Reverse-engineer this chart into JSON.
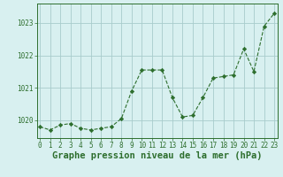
{
  "x": [
    0,
    1,
    2,
    3,
    4,
    5,
    6,
    7,
    8,
    9,
    10,
    11,
    12,
    13,
    14,
    15,
    16,
    17,
    18,
    19,
    20,
    21,
    22,
    23
  ],
  "y": [
    1019.8,
    1019.7,
    1019.85,
    1019.9,
    1019.75,
    1019.7,
    1019.75,
    1019.8,
    1020.05,
    1020.9,
    1021.55,
    1021.55,
    1021.55,
    1020.7,
    1020.1,
    1020.15,
    1020.7,
    1021.3,
    1021.35,
    1021.4,
    1022.2,
    1021.5,
    1022.9,
    1023.3
  ],
  "line_color": "#2d6e2d",
  "marker": "D",
  "marker_size": 2.2,
  "bg_color": "#d8f0f0",
  "grid_color": "#a8cccc",
  "ylabel_ticks": [
    1020,
    1021,
    1022,
    1023
  ],
  "xlabel_ticks": [
    0,
    1,
    2,
    3,
    4,
    5,
    6,
    7,
    8,
    9,
    10,
    11,
    12,
    13,
    14,
    15,
    16,
    17,
    18,
    19,
    20,
    21,
    22,
    23
  ],
  "ylim": [
    1019.45,
    1023.6
  ],
  "xlim": [
    -0.3,
    23.3
  ],
  "xlabel": "Graphe pression niveau de la mer (hPa)",
  "xlabel_color": "#2d6e2d",
  "tick_color": "#2d6e2d",
  "axis_color": "#2d6e2d",
  "xlabel_fontsize": 7.5,
  "tick_fontsize": 5.5
}
